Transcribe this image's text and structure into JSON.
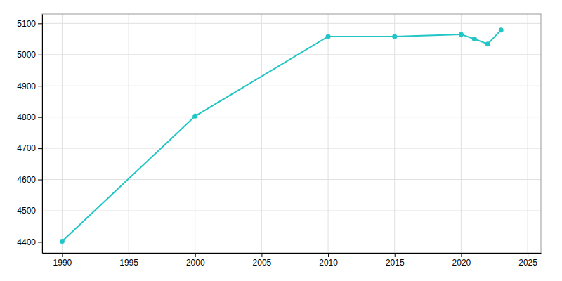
{
  "chart_data": {
    "type": "line",
    "x": [
      1990,
      2000,
      2010,
      2015,
      2020,
      2021,
      2022,
      2023
    ],
    "values": [
      4402,
      4803,
      5058,
      5058,
      5065,
      5050,
      5034,
      5079
    ],
    "color": "#22c5c5",
    "marker": "circle",
    "xlim": [
      1988.5,
      2026
    ],
    "ylim": [
      4365,
      5130
    ],
    "xticks": [
      1990,
      1995,
      2000,
      2005,
      2010,
      2015,
      2020,
      2025
    ],
    "yticks": [
      4400,
      4500,
      4600,
      4700,
      4800,
      4900,
      5000,
      5100
    ],
    "grid": true
  }
}
